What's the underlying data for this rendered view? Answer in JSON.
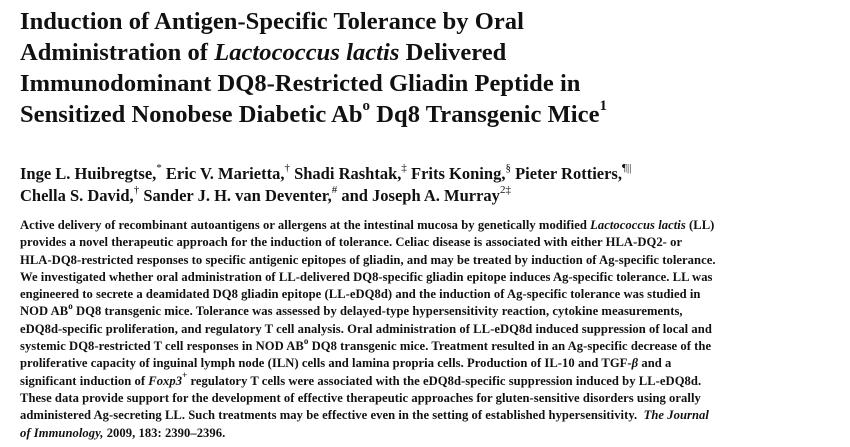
{
  "title": {
    "line1": "Induction of Antigen-Specific Tolerance by Oral",
    "line2_pre": "Administration of ",
    "line2_italic": "Lactococcus lactis",
    "line2_post": " Delivered",
    "line3": "Immunodominant DQ8-Restricted Gliadin Peptide in",
    "line4_pre": "Sensitized Nonobese Diabetic Ab",
    "line4_sup_o": "o",
    "line4_post": " Dq8 Transgenic Mice",
    "line4_sup_1": "1"
  },
  "authors": {
    "line1": [
      {
        "name": "Inge L. Huibregtse,",
        "mark": "*"
      },
      {
        "name": " Eric V. Marietta,",
        "mark": "†"
      },
      {
        "name": " Shadi Rashtak,",
        "mark": "‡"
      },
      {
        "name": " Frits Koning,",
        "mark": "§"
      },
      {
        "name": " Pieter Rottiers,",
        "mark": "¶||"
      }
    ],
    "line2": [
      {
        "name": "Chella S. David,",
        "mark": "†"
      },
      {
        "name": " Sander J. H. van Deventer,",
        "mark": "#"
      },
      {
        "name": " and Joseph A. Murray",
        "mark": "2‡"
      }
    ]
  },
  "abstract": {
    "l1a": "Active delivery of recombinant autoantigens or allergens at the intestinal mucosa by genetically modified ",
    "l1i": "Lactococcus lactis",
    "l1b": " (LL)",
    "l2": "provides a novel therapeutic approach for the induction of tolerance. Celiac disease is associated with either HLA-DQ2- or",
    "l3": "HLA-DQ8-restricted responses to specific antigenic epitopes of gliadin, and may be treated by induction of Ag-specific tolerance.",
    "l4": "We investigated whether oral administration of LL-delivered DQ8-specific gliadin epitope induces Ag-specific tolerance. LL was",
    "l5": "engineered to secrete a deamidated DQ8 gliadin epitope (LL-eDQ8d) and the induction of Ag-specific tolerance was studied in",
    "l6a": "NOD AB",
    "l6sup": "o",
    "l6b": " DQ8 transgenic mice. Tolerance was assessed by delayed-type hypersensitivity reaction, cytokine measurements,",
    "l7": "eDQ8d-specific proliferation, and regulatory T cell analysis. Oral administration of LL-eDQ8d induced suppression of local and",
    "l8a": "systemic DQ8-restricted T cell responses in NOD AB",
    "l8sup": "o",
    "l8b": " DQ8 transgenic mice. Treatment resulted in an Ag-specific decrease of the",
    "l9": "proliferative capacity of inguinal lymph node (ILN) cells and lamina propria cells. Production of IL-10 and TGF-",
    "l9beta": "β",
    "l9b": " and a",
    "l10a": "significant induction of ",
    "l10i": "Foxp3",
    "l10sup": "+",
    "l10b": " regulatory T cells were associated with the eDQ8d-specific suppression induced by LL-eDQ8d.",
    "l11": "These data provide support for the development of effective therapeutic approaches for gluten-sensitive disorders using orally",
    "l12a": "administered Ag-secreting LL. Such treatments may be effective even in the setting of established hypersensitivity.",
    "l12journal": "The Journal",
    "l13journal": "of Immunology,",
    "l13cite": " 2009, 183: 2390–2396."
  }
}
